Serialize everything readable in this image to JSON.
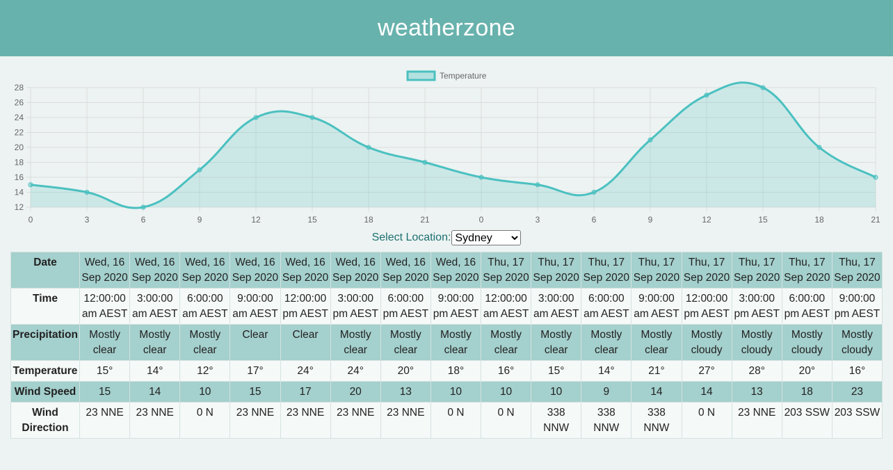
{
  "header": {
    "title": "weatherzone"
  },
  "location": {
    "label": "Select Location:",
    "selected": "Sydney"
  },
  "chart_data": {
    "type": "area",
    "series": [
      {
        "name": "Temperature",
        "values": [
          15,
          14,
          12,
          17,
          24,
          24,
          20,
          18,
          16,
          15,
          14,
          21,
          27,
          28,
          20,
          16
        ]
      }
    ],
    "categories": [
      "0",
      "3",
      "6",
      "9",
      "12",
      "15",
      "18",
      "21",
      "0",
      "3",
      "6",
      "9",
      "12",
      "15",
      "18",
      "21"
    ],
    "yticks": [
      12,
      14,
      16,
      18,
      20,
      22,
      24,
      26,
      28
    ],
    "ylim": [
      12,
      28
    ],
    "grid": true,
    "legend": "top-center",
    "colors": {
      "line": "#4bc0c0",
      "fill": "rgba(75,192,192,0.2)"
    }
  },
  "table": {
    "rows": [
      {
        "label": "Date",
        "style": "band",
        "cells": [
          "Wed, 16 Sep 2020",
          "Wed, 16 Sep 2020",
          "Wed, 16 Sep 2020",
          "Wed, 16 Sep 2020",
          "Wed, 16 Sep 2020",
          "Wed, 16 Sep 2020",
          "Wed, 16 Sep 2020",
          "Wed, 16 Sep 2020",
          "Thu, 17 Sep 2020",
          "Thu, 17 Sep 2020",
          "Thu, 17 Sep 2020",
          "Thu, 17 Sep 2020",
          "Thu, 17 Sep 2020",
          "Thu, 17 Sep 2020",
          "Thu, 17 Sep 2020",
          "Thu, 17 Sep 2020"
        ]
      },
      {
        "label": "Time",
        "style": "plain",
        "cells": [
          "12:00:00 am AEST",
          "3:00:00 am AEST",
          "6:00:00 am AEST",
          "9:00:00 am AEST",
          "12:00:00 pm AEST",
          "3:00:00 pm AEST",
          "6:00:00 pm AEST",
          "9:00:00 pm AEST",
          "12:00:00 am AEST",
          "3:00:00 am AEST",
          "6:00:00 am AEST",
          "9:00:00 am AEST",
          "12:00:00 pm AEST",
          "3:00:00 pm AEST",
          "6:00:00 pm AEST",
          "9:00:00 pm AEST"
        ]
      },
      {
        "label": "Precipitation",
        "style": "band",
        "cells": [
          "Mostly clear",
          "Mostly clear",
          "Mostly clear",
          "Clear",
          "Clear",
          "Mostly clear",
          "Mostly clear",
          "Mostly clear",
          "Mostly clear",
          "Mostly clear",
          "Mostly clear",
          "Mostly clear",
          "Mostly cloudy",
          "Mostly cloudy",
          "Mostly cloudy",
          "Mostly cloudy"
        ]
      },
      {
        "label": "Temperature",
        "style": "plain",
        "cells": [
          "15°",
          "14°",
          "12°",
          "17°",
          "24°",
          "24°",
          "20°",
          "18°",
          "16°",
          "15°",
          "14°",
          "21°",
          "27°",
          "28°",
          "20°",
          "16°"
        ]
      },
      {
        "label": "Wind Speed",
        "style": "band",
        "cells": [
          "15",
          "14",
          "10",
          "15",
          "17",
          "20",
          "13",
          "10",
          "10",
          "10",
          "9",
          "14",
          "14",
          "13",
          "18",
          "23"
        ]
      },
      {
        "label": "Wind Direction",
        "style": "plain",
        "cells": [
          "23 NNE",
          "23 NNE",
          "0 N",
          "23 NNE",
          "23 NNE",
          "23 NNE",
          "23 NNE",
          "0 N",
          "0 N",
          "338 NNW",
          "338 NNW",
          "338 NNW",
          "0 N",
          "23 NNE",
          "203 SSW",
          "203 SSW"
        ]
      }
    ]
  }
}
